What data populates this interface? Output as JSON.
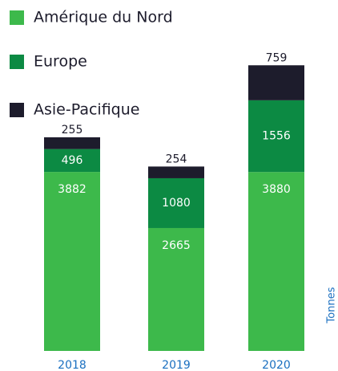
{
  "chart_data": {
    "type": "stacked_bar",
    "categories": [
      "2018",
      "2019",
      "2020"
    ],
    "series": [
      {
        "name": "Amérique du Nord",
        "color": "#3db94b",
        "values": [
          3882,
          2665,
          3880
        ]
      },
      {
        "name": "Europe",
        "color": "#0c8a43",
        "values": [
          496,
          1080,
          1556
        ]
      },
      {
        "name": "Asie-Pacifique",
        "color": "#1d1c2c",
        "values": [
          255,
          254,
          759
        ]
      }
    ],
    "ylim": [
      0,
      6200
    ],
    "ylabel": "Tonnes"
  }
}
